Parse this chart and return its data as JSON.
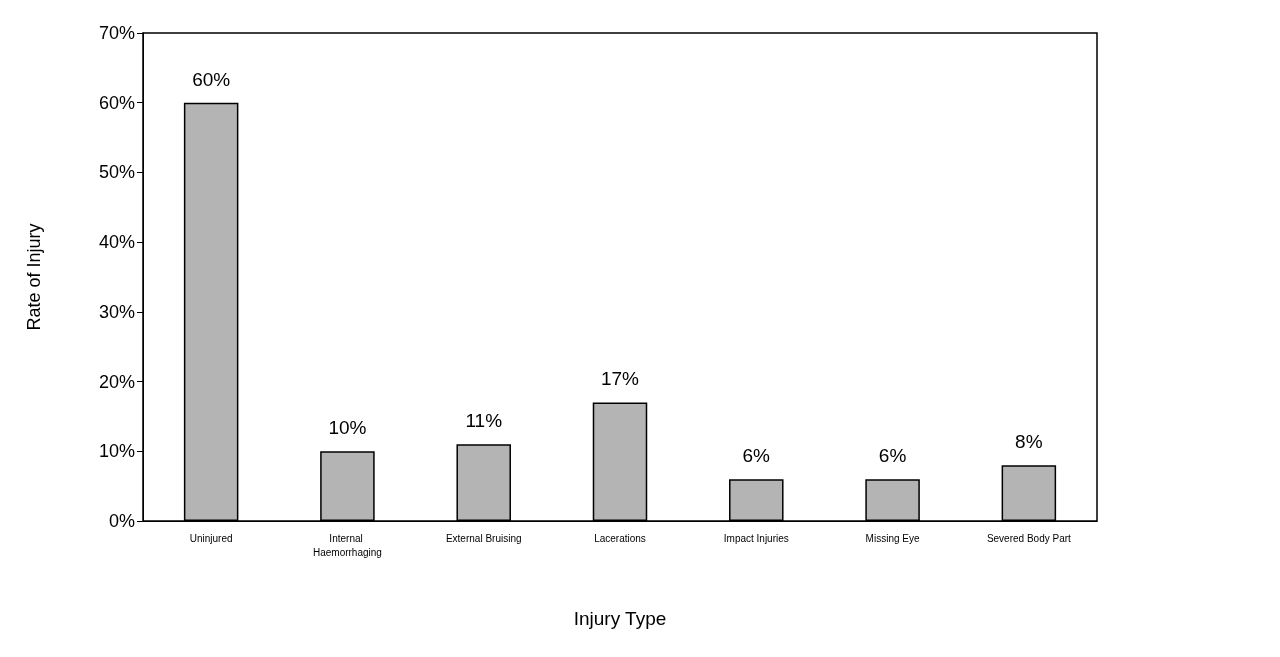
{
  "chart_data": {
    "type": "bar",
    "xlabel": "Injury Type",
    "ylabel": "Rate of Injury",
    "categories": [
      "Uninjured",
      "Internal Haemorrhaging",
      "External Bruising",
      "Lacerations",
      "Impact Injuries",
      "Missing Eye",
      "Severed Body Part"
    ],
    "values": [
      60,
      10,
      11,
      17,
      6,
      6,
      8
    ],
    "value_labels": [
      "60%",
      "10%",
      "11%",
      "17%",
      "6%",
      "6%",
      "8%"
    ],
    "color": "#b4b4b4",
    "ylim": [
      0,
      70
    ],
    "yticks": [
      {
        "value": 0,
        "label": "0%"
      },
      {
        "value": 10,
        "label": "10%"
      },
      {
        "value": 20,
        "label": "20%"
      },
      {
        "value": 30,
        "label": "30%"
      },
      {
        "value": 40,
        "label": "40%"
      },
      {
        "value": 50,
        "label": "50%"
      },
      {
        "value": 60,
        "label": "60%"
      },
      {
        "value": 70,
        "label": "70%"
      }
    ],
    "grid": false
  }
}
